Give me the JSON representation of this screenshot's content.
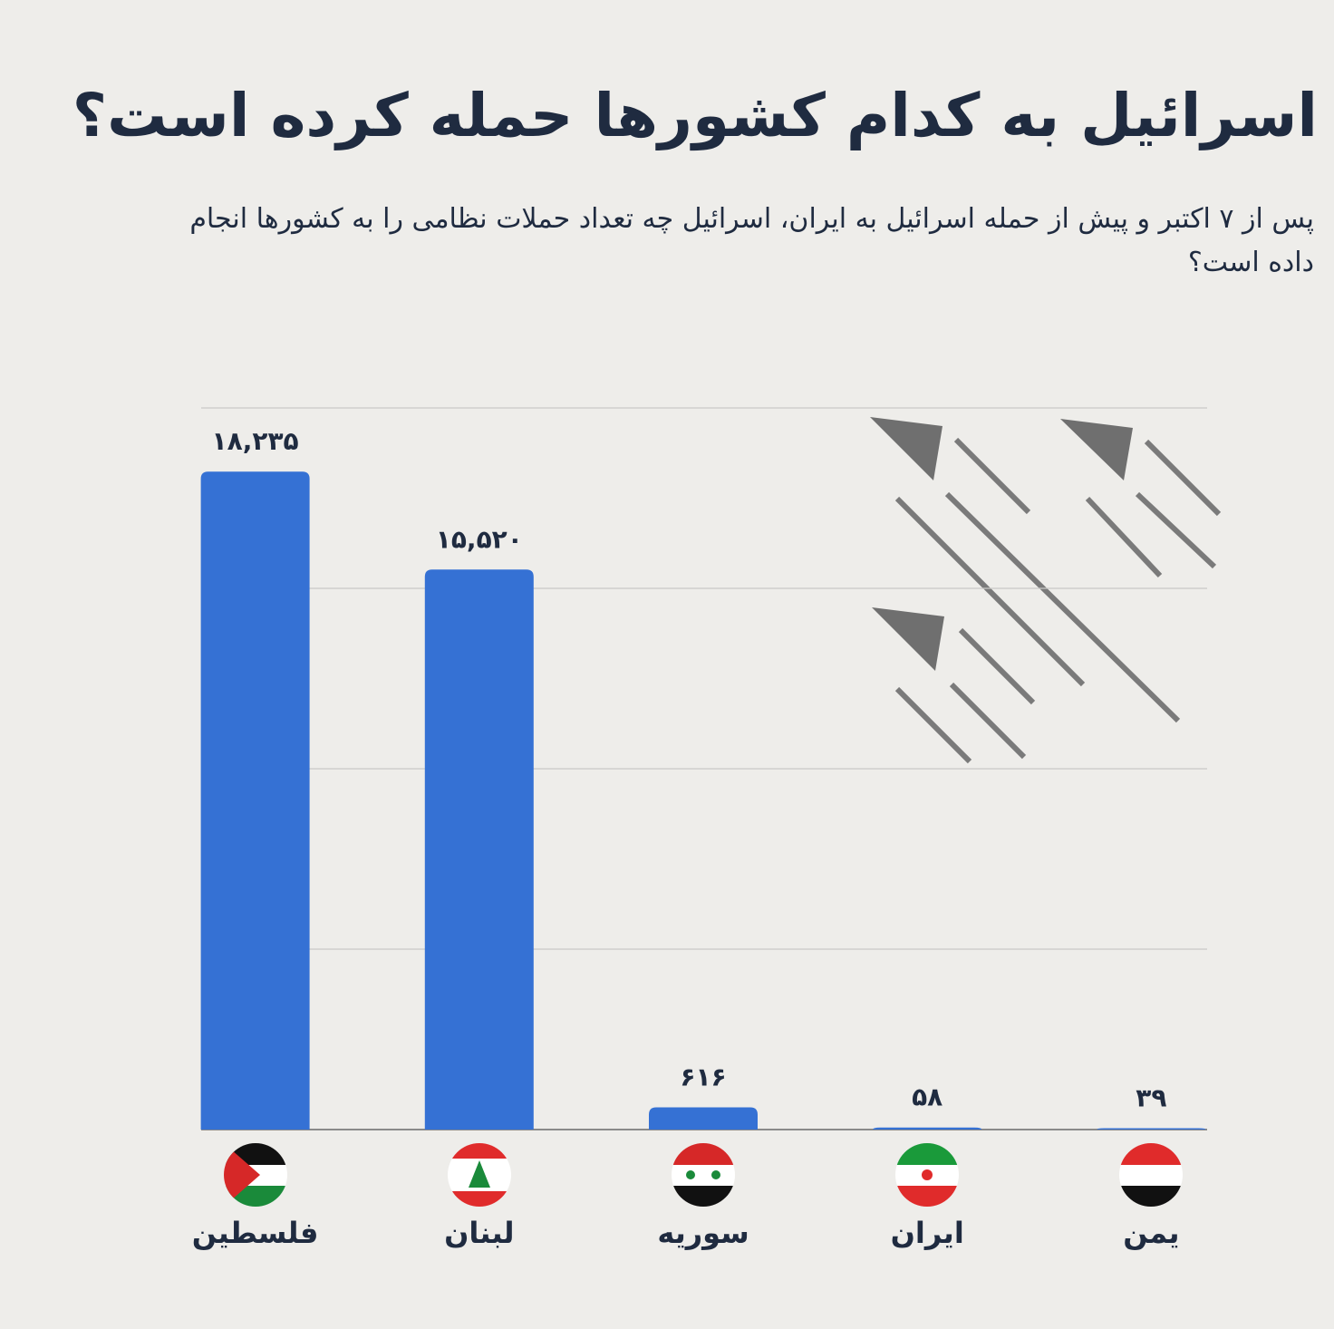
{
  "chart_data": {
    "type": "bar",
    "title": "اسرائیل به کدام کشورها حمله کرده است؟",
    "subtitle": "پس از ۷ اکتبر و پیش از حمله اسرائیل به ایران، اسرائیل چه تعداد حملات نظامی را به کشورها انجام داده است؟",
    "categories": [
      "فلسطین",
      "لبنان",
      "سوریه",
      "ایران",
      "یمن"
    ],
    "values": [
      18235,
      15520,
      616,
      58,
      39
    ],
    "value_labels": [
      "۱۸,۲۳۵",
      "۱۵,۵۲۰",
      "۶۱۶",
      "۵۸",
      "۳۹"
    ],
    "color": "#3571d4",
    "ylim": [
      0,
      20000
    ],
    "yticks": [
      0,
      5000,
      10000,
      15000,
      20000
    ],
    "grid": true
  }
}
